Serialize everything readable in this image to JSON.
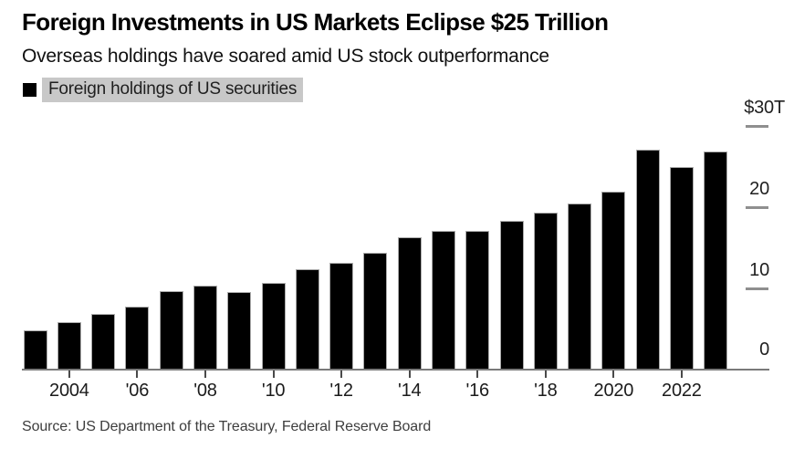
{
  "header": {
    "title": "Foreign Investments in US Markets Eclipse $25 Trillion",
    "subtitle": "Overseas holdings have soared amid US stock outperformance",
    "legend": {
      "label": "Foreign holdings of US securities",
      "swatch_color": "#000000",
      "highlight_color": "#c8c8c8"
    }
  },
  "chart_data": {
    "type": "bar",
    "title": "Foreign Investments in US Markets Eclipse $25 Trillion",
    "subtitle": "Overseas holdings have soared amid US stock outperformance",
    "series_name": "Foreign holdings of US securities",
    "unit": "USD trillions",
    "bar_color": "#000000",
    "grid": "none",
    "legend_position": "top-left",
    "value_axis_side": "right",
    "ylim": [
      0,
      30
    ],
    "categories": [
      2003,
      2004,
      2005,
      2006,
      2007,
      2008,
      2009,
      2010,
      2011,
      2012,
      2013,
      2014,
      2015,
      2016,
      2017,
      2018,
      2019,
      2020,
      2021,
      2022,
      2023
    ],
    "values": [
      4.8,
      5.9,
      6.9,
      7.8,
      9.7,
      10.3,
      9.6,
      10.7,
      12.4,
      13.1,
      14.4,
      16.3,
      17.1,
      17.1,
      18.3,
      19.3,
      20.4,
      21.9,
      27.1,
      24.9,
      26.9
    ],
    "yticks": [
      {
        "value": 30,
        "label": "$30T"
      },
      {
        "value": 20,
        "label": "20"
      },
      {
        "value": 10,
        "label": "10"
      },
      {
        "value": 0,
        "label": "0"
      }
    ],
    "xticks": [
      {
        "year": 2004,
        "label": "2004"
      },
      {
        "year": 2006,
        "label": "'06"
      },
      {
        "year": 2008,
        "label": "'08"
      },
      {
        "year": 2010,
        "label": "'10"
      },
      {
        "year": 2012,
        "label": "'12"
      },
      {
        "year": 2014,
        "label": "'14"
      },
      {
        "year": 2016,
        "label": "'16"
      },
      {
        "year": 2018,
        "label": "'18"
      },
      {
        "year": 2020,
        "label": "2020"
      },
      {
        "year": 2022,
        "label": "2022"
      }
    ]
  },
  "footer": {
    "source": "Source: US Department of the Treasury, Federal Reserve Board"
  }
}
